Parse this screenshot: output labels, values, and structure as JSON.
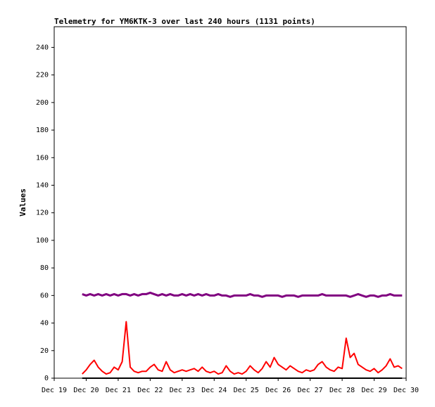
{
  "chart_data": {
    "type": "line",
    "title": "Telemetry for YM6KTK-3 over last 240 hours (1131 points)",
    "y_label": "Values",
    "x": [
      19.875,
      20,
      20.125,
      20.25,
      20.375,
      20.5,
      20.625,
      20.75,
      20.875,
      21,
      21.125,
      21.25,
      21.375,
      21.5,
      21.625,
      21.75,
      21.875,
      22,
      22.125,
      22.25,
      22.375,
      22.5,
      22.625,
      22.75,
      22.875,
      23,
      23.125,
      23.25,
      23.375,
      23.5,
      23.625,
      23.75,
      23.875,
      24,
      24.125,
      24.25,
      24.375,
      24.5,
      24.625,
      24.75,
      24.875,
      25,
      25.125,
      25.25,
      25.375,
      25.5,
      25.625,
      25.75,
      25.875,
      26,
      26.125,
      26.25,
      26.375,
      26.5,
      26.625,
      26.75,
      26.875,
      27,
      27.125,
      27.25,
      27.375,
      27.5,
      27.625,
      27.75,
      27.875,
      28,
      28.125,
      28.25,
      28.375,
      28.5,
      28.625,
      28.75,
      28.875,
      29,
      29.125,
      29.25,
      29.375,
      29.5,
      29.625,
      29.75,
      29.875
    ],
    "series": [
      {
        "color": "#800080",
        "values": [
          61,
          60,
          61,
          60,
          61,
          60,
          61,
          60,
          61,
          60,
          61,
          61,
          60,
          61,
          60,
          61,
          61,
          62,
          61,
          60,
          61,
          60,
          61,
          60,
          60,
          61,
          60,
          61,
          60,
          61,
          60,
          61,
          60,
          60,
          61,
          60,
          60,
          59,
          60,
          60,
          60,
          60,
          61,
          60,
          60,
          59,
          60,
          60,
          60,
          60,
          59,
          60,
          60,
          60,
          59,
          60,
          60,
          60,
          60,
          60,
          61,
          60,
          60,
          60,
          60,
          60,
          60,
          59,
          60,
          61,
          60,
          59,
          60,
          60,
          59,
          60,
          60,
          61,
          60,
          60,
          60
        ]
      },
      {
        "color": "#ff0000",
        "values": [
          3,
          6,
          10,
          13,
          8,
          5,
          3,
          4,
          8,
          6,
          12,
          41,
          8,
          5,
          4,
          5,
          5,
          8,
          10,
          6,
          5,
          12,
          6,
          4,
          5,
          6,
          5,
          6,
          7,
          5,
          8,
          5,
          4,
          5,
          3,
          4,
          9,
          5,
          3,
          4,
          3,
          5,
          9,
          6,
          4,
          7,
          12,
          8,
          15,
          10,
          8,
          6,
          9,
          7,
          5,
          4,
          6,
          5,
          6,
          10,
          12,
          8,
          6,
          5,
          8,
          7,
          29,
          15,
          18,
          10,
          8,
          6,
          5,
          7,
          4,
          6,
          9,
          14,
          8,
          9,
          7
        ]
      },
      {
        "color": "#000000",
        "values": [
          0,
          0,
          0,
          0,
          0,
          0,
          0,
          0,
          0,
          0,
          0,
          0,
          0,
          0,
          0,
          0,
          0,
          0,
          0,
          0,
          0,
          0,
          0,
          0,
          0,
          0,
          0,
          0,
          0,
          0,
          0,
          0,
          0,
          0,
          0,
          0,
          0,
          0,
          0,
          0,
          0,
          0,
          0,
          0,
          0,
          0,
          0,
          0,
          0,
          0,
          0,
          0,
          0,
          0,
          0,
          0,
          0,
          0,
          0,
          0,
          0,
          0,
          0,
          0,
          0,
          0,
          0,
          0,
          0,
          0,
          0,
          0,
          0,
          0,
          0,
          0,
          0,
          0,
          0,
          0,
          0
        ]
      }
    ],
    "xlim": [
      19,
      30
    ],
    "xticks": [
      {
        "value": 19,
        "label": "Dec 19"
      },
      {
        "value": 20,
        "label": "Dec 20"
      },
      {
        "value": 21,
        "label": "Dec 21"
      },
      {
        "value": 22,
        "label": "Dec 22"
      },
      {
        "value": 23,
        "label": "Dec 23"
      },
      {
        "value": 24,
        "label": "Dec 24"
      },
      {
        "value": 25,
        "label": "Dec 25"
      },
      {
        "value": 26,
        "label": "Dec 26"
      },
      {
        "value": 27,
        "label": "Dec 27"
      },
      {
        "value": 28,
        "label": "Dec 28"
      },
      {
        "value": 29,
        "label": "Dec 29"
      },
      {
        "value": 30,
        "label": "Dec 30"
      }
    ],
    "ylim": [
      0,
      255
    ],
    "yticks": [
      0,
      20,
      40,
      60,
      80,
      100,
      120,
      140,
      160,
      180,
      200,
      220,
      240
    ]
  }
}
